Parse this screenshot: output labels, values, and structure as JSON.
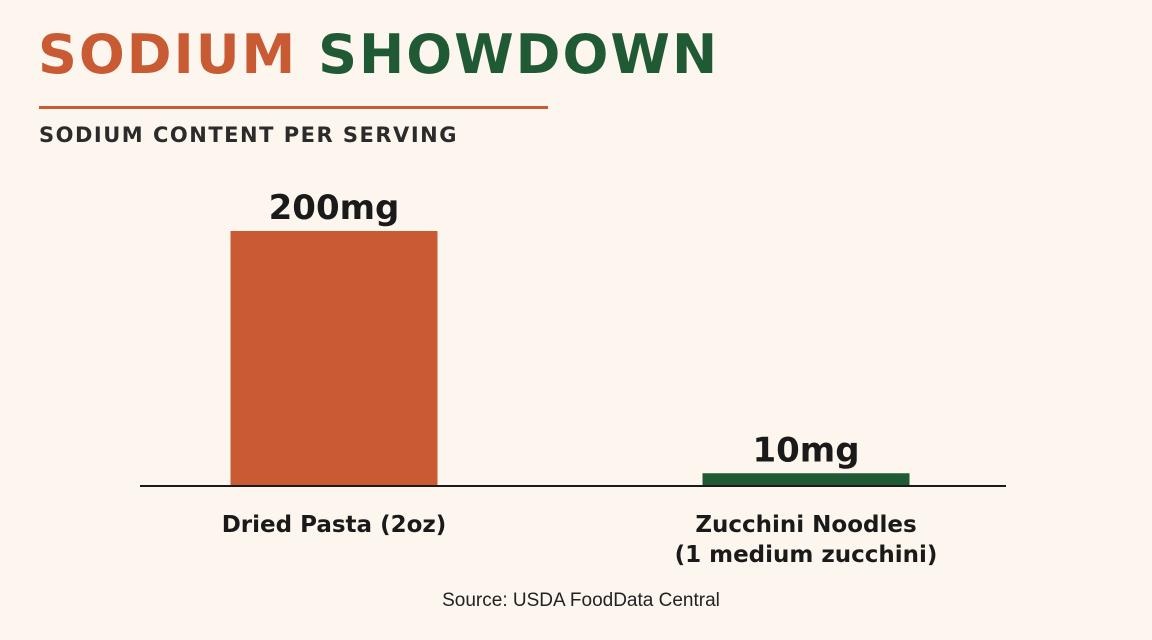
{
  "header": {
    "title_part1": "SODIUM",
    "title_part2": "SHOWDOWN",
    "subtitle": "SODIUM CONTENT PER SERVING"
  },
  "colors": {
    "accent_orange": "#c85a34",
    "accent_green": "#1f5a35",
    "background": "#fcf6ee",
    "text_dark": "#1a1a1a"
  },
  "chart_data": {
    "type": "bar",
    "title": "SODIUM SHOWDOWN",
    "subtitle": "SODIUM CONTENT PER SERVING",
    "categories": [
      [
        "Dried Pasta (2oz)"
      ],
      [
        "Zucchini Noodles",
        "(1 medium zucchini)"
      ]
    ],
    "values": [
      200,
      10
    ],
    "value_labels": [
      "200mg",
      "10mg"
    ],
    "unit": "mg",
    "bar_colors": [
      "#c85a34",
      "#1f5a35"
    ],
    "ylim": [
      0,
      200
    ],
    "grid": false,
    "legend": "none"
  },
  "footer": {
    "source": "Source: USDA FoodData Central"
  }
}
